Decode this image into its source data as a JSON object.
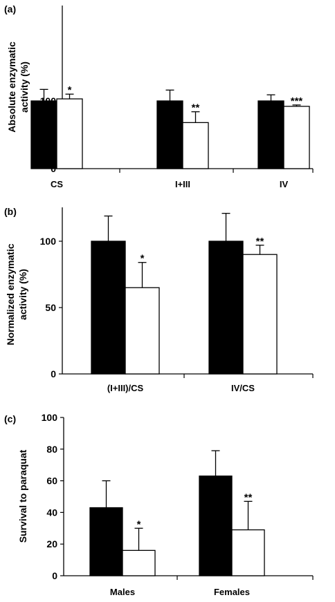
{
  "chart_data": [
    {
      "panel_label": "(a)",
      "type": "bar",
      "categories": [
        "CS",
        "I+III",
        "IV"
      ],
      "series": [
        {
          "fill": "#000000",
          "values": [
            100,
            100,
            100
          ],
          "errors": [
            17,
            16,
            9
          ],
          "stars": [
            "",
            "",
            ""
          ]
        },
        {
          "fill": "#ffffff",
          "values": [
            103,
            68,
            92
          ],
          "errors": [
            7,
            16,
            2
          ],
          "stars": [
            "*",
            "**",
            "***"
          ]
        }
      ],
      "ylabel": [
        "Absolute enzymatic",
        "activity (%)"
      ],
      "ylim": [
        0,
        120
      ],
      "yticks": [
        0,
        50,
        100
      ],
      "grid": false
    },
    {
      "panel_label": "(b)",
      "type": "bar",
      "categories": [
        "(I+III)/CS",
        "IV/CS"
      ],
      "series": [
        {
          "fill": "#000000",
          "values": [
            100,
            100
          ],
          "errors": [
            19,
            21
          ],
          "stars": [
            "",
            ""
          ]
        },
        {
          "fill": "#ffffff",
          "values": [
            65,
            90
          ],
          "errors": [
            19,
            7
          ],
          "stars": [
            "*",
            "**"
          ]
        }
      ],
      "ylabel": [
        "Normalized enzymatic",
        "activity (%)"
      ],
      "ylim": [
        0,
        125
      ],
      "yticks": [
        0,
        50,
        100
      ],
      "grid": false
    },
    {
      "panel_label": "(c)",
      "type": "bar",
      "categories": [
        "Males",
        "Females"
      ],
      "series": [
        {
          "fill": "#000000",
          "values": [
            43,
            63
          ],
          "errors": [
            17,
            16
          ],
          "stars": [
            "",
            ""
          ]
        },
        {
          "fill": "#ffffff",
          "values": [
            16,
            29
          ],
          "errors": [
            14,
            18
          ],
          "stars": [
            "*",
            "**"
          ]
        }
      ],
      "ylabel": [
        "Survival to paraquat"
      ],
      "ylim": [
        0,
        100
      ],
      "yticks": [
        0,
        20,
        40,
        60,
        80,
        100
      ],
      "grid": false
    }
  ]
}
